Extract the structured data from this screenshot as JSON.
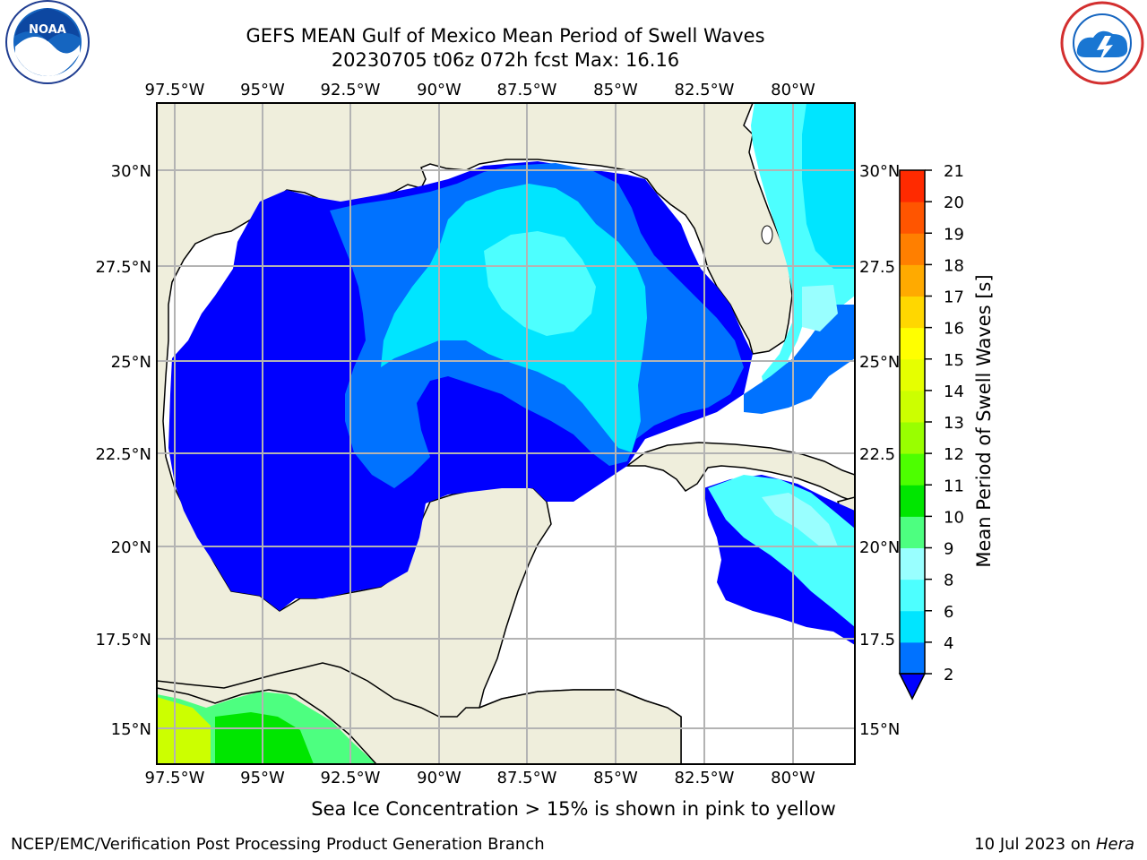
{
  "header": {
    "title_line1": "GEFS MEAN Gulf of Mexico Mean Period of Swell Waves",
    "title_line2": "20230705 t06z 072h fcst   Max: 16.16"
  },
  "logos": {
    "left": "noara-logo",
    "right": "nws-logo"
  },
  "map": {
    "lon_labels": [
      "97.5°W",
      "95°W",
      "92.5°W",
      "90°W",
      "87.5°W",
      "85°W",
      "82.5°W",
      "80°W"
    ],
    "lat_labels_left": [
      "30°N",
      "27.5°N",
      "25°N",
      "22.5°N",
      "20°N",
      "17.5°N",
      "15°N"
    ],
    "lat_labels_right": [
      "30°N",
      "27.5",
      "25°N",
      "22.5",
      "20°N",
      "17.5",
      "15°N"
    ],
    "land_color": "#efeedc",
    "grid_color": "#b3b3b3"
  },
  "colorbar": {
    "label": "Mean Period of Swell Waves [s]",
    "ticks": [
      "2",
      "4",
      "6",
      "8",
      "9",
      "10",
      "11",
      "12",
      "13",
      "14",
      "15",
      "16",
      "17",
      "18",
      "19",
      "20",
      "21"
    ],
    "colors": [
      "#0072ff",
      "#00e5ff",
      "#4dffff",
      "#99ffff",
      "#4dff80",
      "#00e600",
      "#4dff00",
      "#99ff00",
      "#ccff00",
      "#e6ff00",
      "#ffff00",
      "#ffd700",
      "#ffaa00",
      "#ff7f00",
      "#ff5500",
      "#ff2a00"
    ],
    "extend_color": "#0000ff"
  },
  "subtitle": "Sea Ice Concentration > 15% is shown in pink to yellow",
  "footer": {
    "left": "NCEP/EMC/Verification Post Processing Product Generation Branch",
    "right_prefix": "10 Jul 2023 on ",
    "right_italic": "Hera"
  }
}
